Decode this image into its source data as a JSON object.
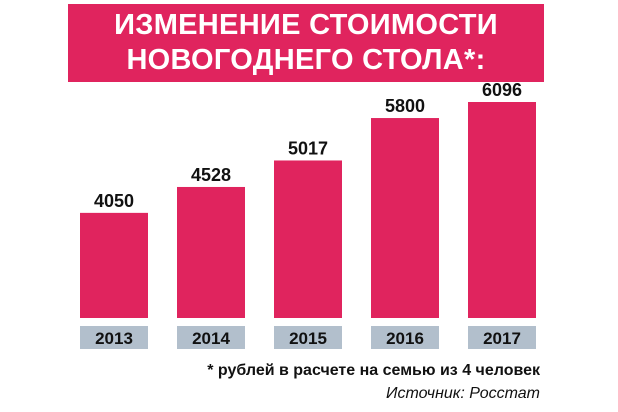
{
  "title": {
    "line1": "ИЗМЕНЕНИЕ СТОИМОСТИ",
    "line2": "НОВОГОДНЕГО СТОЛА*:"
  },
  "chart_data": {
    "type": "bar",
    "title": "ИЗМЕНЕНИЕ СТОИМОСТИ НОВОГОДНЕГО СТОЛА*:",
    "categories": [
      "2013",
      "2014",
      "2015",
      "2016",
      "2017"
    ],
    "values": [
      4050,
      4528,
      5017,
      5800,
      6096
    ],
    "value_labels": [
      "4050",
      "4528",
      "5017",
      "5800",
      "6096"
    ],
    "ylim": [
      2110,
      6096
    ],
    "grid": false,
    "legend": "none"
  },
  "footnote": "* рублей в расчете на семью из 4 человек",
  "source": "Источник: Росстат",
  "colors": {
    "bar": "#e0245e",
    "title_bg": "#e0245e",
    "title_text": "#ffffff",
    "category_bg": "#b2bfcc",
    "text": "#111111"
  }
}
